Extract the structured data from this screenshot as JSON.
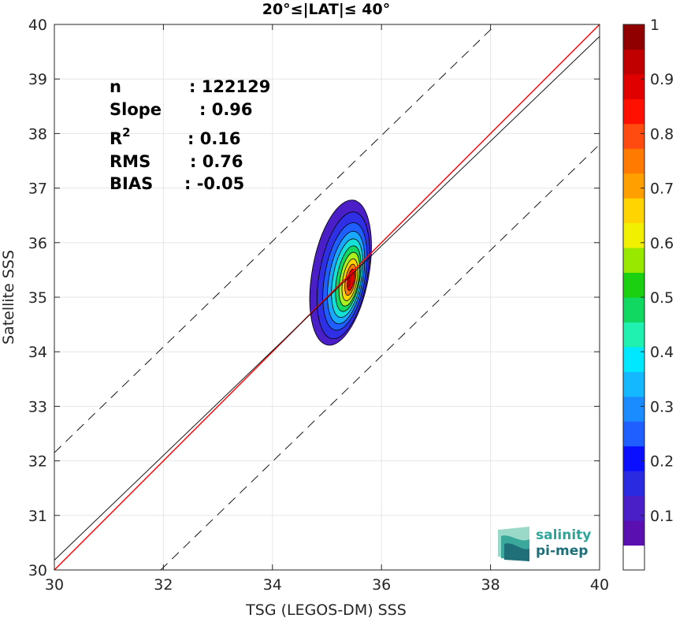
{
  "chart_data": {
    "type": "heatmap",
    "title": "20°≤|LAT|≤ 40°",
    "xlabel": "TSG (LEGOS-DM) SSS",
    "ylabel": "Satellite SSS",
    "xlim": [
      30,
      40
    ],
    "ylim": [
      30,
      40
    ],
    "xticks": [
      "30",
      "32",
      "34",
      "36",
      "38",
      "40"
    ],
    "yticks": [
      "30",
      "31",
      "32",
      "33",
      "34",
      "35",
      "36",
      "37",
      "38",
      "39",
      "40"
    ],
    "grid": true,
    "stats": [
      {
        "label": "n",
        "value": ": 122129"
      },
      {
        "label": "Slope",
        "value": ": 0.96"
      },
      {
        "label": "R",
        "sup": "2",
        "value": ": 0.16"
      },
      {
        "label": "RMS",
        "value": ": 0.76"
      },
      {
        "label": "BIAS",
        "value": ": -0.05"
      }
    ],
    "lines": [
      {
        "role": "identity",
        "color": "#ff0000",
        "from": [
          30,
          30
        ],
        "to": [
          40,
          40
        ]
      },
      {
        "role": "regression",
        "color": "#000000",
        "from": [
          30,
          30.18
        ],
        "to": [
          40,
          39.78
        ]
      },
      {
        "role": "upper-bound",
        "color": "#000000",
        "dashed": true,
        "from": [
          30,
          32.15
        ],
        "to": [
          38.1,
          40
        ]
      },
      {
        "role": "lower-bound",
        "color": "#000000",
        "dashed": true,
        "from": [
          31.95,
          30
        ],
        "to": [
          40,
          37.8
        ]
      }
    ],
    "density_peak": {
      "x": 35.4,
      "y": 35.3
    },
    "density_levels": [
      {
        "level": 0.05,
        "color": "#4a1fc8",
        "cx": 35.25,
        "cy": 35.45,
        "rx": 0.52,
        "ry": 1.35,
        "rot": 0.18
      },
      {
        "level": 0.1,
        "color": "#2f2fe6",
        "cx": 35.3,
        "cy": 35.4,
        "rx": 0.44,
        "ry": 1.18,
        "rot": 0.18
      },
      {
        "level": 0.2,
        "color": "#1f5fff",
        "cx": 35.33,
        "cy": 35.38,
        "rx": 0.37,
        "ry": 1.0,
        "rot": 0.18
      },
      {
        "level": 0.3,
        "color": "#18a8ff",
        "cx": 35.35,
        "cy": 35.36,
        "rx": 0.31,
        "ry": 0.86,
        "rot": 0.18
      },
      {
        "level": 0.4,
        "color": "#14e0d8",
        "cx": 35.37,
        "cy": 35.35,
        "rx": 0.26,
        "ry": 0.73,
        "rot": 0.18
      },
      {
        "level": 0.5,
        "color": "#10d860",
        "cx": 35.39,
        "cy": 35.34,
        "rx": 0.21,
        "ry": 0.61,
        "rot": 0.18
      },
      {
        "level": 0.6,
        "color": "#a8f020",
        "cx": 35.41,
        "cy": 35.33,
        "rx": 0.17,
        "ry": 0.5,
        "rot": 0.18
      },
      {
        "level": 0.7,
        "color": "#ffd400",
        "cx": 35.42,
        "cy": 35.32,
        "rx": 0.13,
        "ry": 0.39,
        "rot": 0.18
      },
      {
        "level": 0.8,
        "color": "#ff7a00",
        "cx": 35.43,
        "cy": 35.32,
        "rx": 0.09,
        "ry": 0.29,
        "rot": 0.18
      },
      {
        "level": 0.9,
        "color": "#e60000",
        "cx": 35.44,
        "cy": 35.32,
        "rx": 0.06,
        "ry": 0.2,
        "rot": 0.18
      }
    ],
    "colorbar": {
      "ticks": [
        "0.1",
        "0.2",
        "0.3",
        "0.4",
        "0.5",
        "0.6",
        "0.7",
        "0.8",
        "0.9",
        "1"
      ],
      "colors": [
        "#ffffff",
        "#5a0fb0",
        "#4a1fc8",
        "#2a2ae0",
        "#0a10ff",
        "#1f5fff",
        "#1a8cff",
        "#14b8ff",
        "#00e8ff",
        "#20f0b0",
        "#10d860",
        "#1ad010",
        "#98e800",
        "#f0f000",
        "#ffd400",
        "#ffa000",
        "#ff7a00",
        "#ff4a10",
        "#ff1000",
        "#e00000",
        "#c00000",
        "#900000"
      ]
    }
  },
  "logo": {
    "line1": "salinity",
    "line2": "pi-mep"
  }
}
